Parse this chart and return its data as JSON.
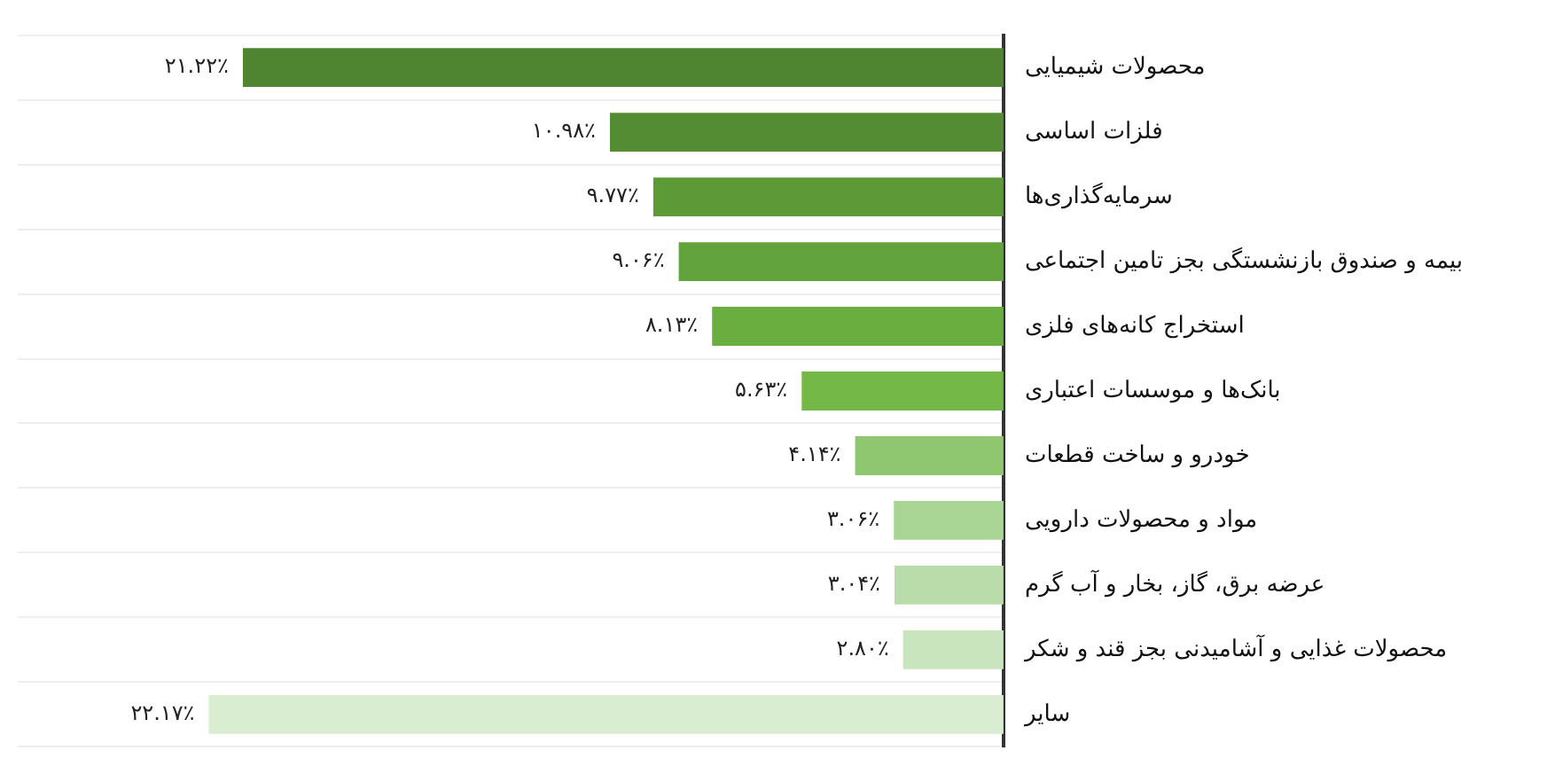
{
  "chart_data": {
    "type": "bar",
    "orientation": "horizontal",
    "categories": [
      "محصولات شیمیایی",
      "فلزات اساسی",
      "سرمایه‌گذاری‌ها",
      "بیمه و صندوق بازنشستگی بجز تامین اجتماعی",
      "استخراج کانه‌های فلزی",
      "بانک‌ها و موسسات اعتباری",
      "خودرو و ساخت قطعات",
      "مواد و محصولات دارویی",
      "عرضه برق، گاز، بخار و آب گرم",
      "محصولات غذایی و آشامیدنی بجز قند و شکر",
      "سایر"
    ],
    "values": [
      21.22,
      10.98,
      9.77,
      9.06,
      8.13,
      5.63,
      4.14,
      3.06,
      3.04,
      2.8,
      22.17
    ],
    "value_labels": [
      "۲۱.۲۲٪",
      "۱۰.۹۸٪",
      "۹.۷۷٪",
      "۹.۰۶٪",
      "۸.۱۳٪",
      "۵.۶۳٪",
      "۴.۱۴٪",
      "۳.۰۶٪",
      "۳.۰۴٪",
      "۲.۸۰٪",
      "۲۲.۱۷٪"
    ],
    "colors": [
      "#4f8530",
      "#548c33",
      "#5c9a37",
      "#63a33b",
      "#6bae40",
      "#74b848",
      "#8fc670",
      "#a9d595",
      "#b9ddaa",
      "#c9e5bd",
      "#d9edd0"
    ],
    "xlim": [
      27.5,
      0
    ],
    "grid": "y",
    "legend": false,
    "tick_labels": "y"
  }
}
